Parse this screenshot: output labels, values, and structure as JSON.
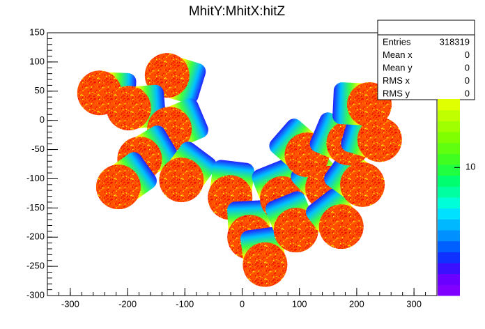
{
  "chart_data": {
    "type": "scatter",
    "title": "MhitY:MhitX:hitZ",
    "x": [
      -249,
      -131,
      -198,
      -127,
      -179,
      -216,
      -106,
      -21,
      13,
      40,
      70,
      94,
      149,
      173,
      210,
      113,
      186,
      240,
      222
    ],
    "y": [
      47,
      77,
      21,
      -15,
      -66,
      -114,
      -102,
      -132,
      -200,
      -247,
      -134,
      -188,
      -116,
      -182,
      -110,
      -59,
      -39,
      -33,
      27
    ],
    "xlim": [
      -340,
      340
    ],
    "ylim": [
      -300,
      150
    ],
    "xticks": [
      -300,
      -200,
      -100,
      0,
      100,
      200,
      300
    ],
    "yticks": [
      -300,
      -250,
      -200,
      -150,
      -100,
      -50,
      0,
      50,
      100,
      150
    ],
    "zlim": [
      2.5,
      21
    ],
    "zticks": [
      10
    ],
    "zlog": true,
    "palette": [
      "#8000ff",
      "#6a00ff",
      "#3a10ff",
      "#1030ff",
      "#0060ff",
      "#0090ff",
      "#00b8ff",
      "#00e0ff",
      "#00ffd8",
      "#00ffa0",
      "#00ff70",
      "#20ff40",
      "#40ff20",
      "#60ff10",
      "#80ff00",
      "#a0ff00",
      "#c0ff00",
      "#e0ff00"
    ],
    "stats": [
      {
        "label": "Entries",
        "value": 318319
      },
      {
        "label": "Mean x",
        "value": 0
      },
      {
        "label": "Mean y",
        "value": 0
      },
      {
        "label": "RMS x",
        "value": 0
      },
      {
        "label": "RMS y",
        "value": 0
      }
    ]
  }
}
